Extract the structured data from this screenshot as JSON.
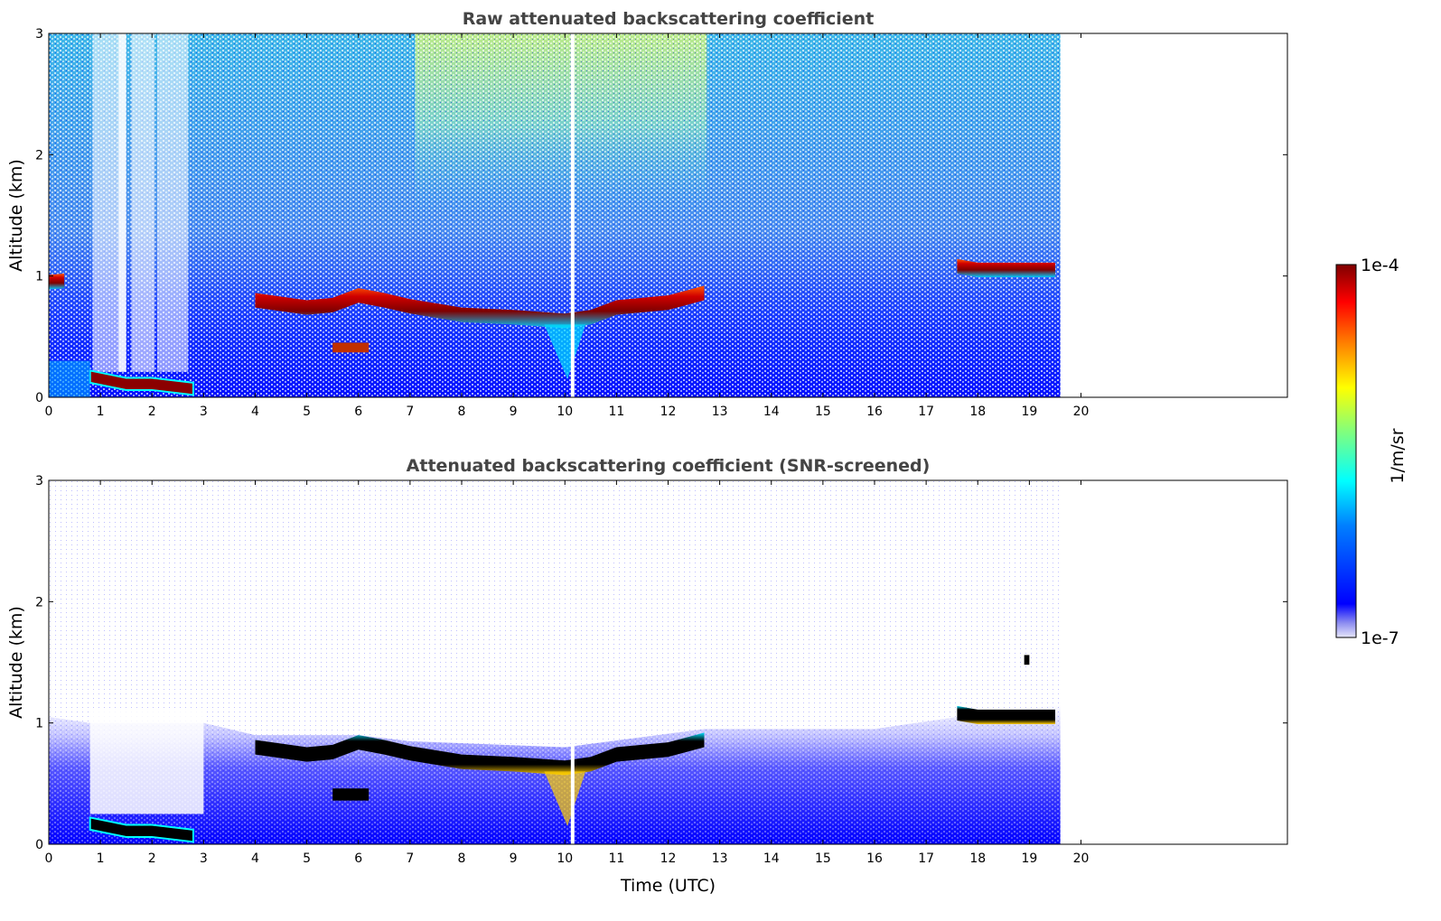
{
  "chart_data": [
    {
      "type": "heatmap",
      "title": "Raw attenuated backscattering coefficient",
      "xlabel": "",
      "ylabel": "Altitude (km)",
      "xlim": [
        0,
        24
      ],
      "ylim": [
        0,
        3
      ],
      "x_ticks": [
        "0",
        "1",
        "2",
        "3",
        "4",
        "5",
        "6",
        "7",
        "8",
        "9",
        "10",
        "11",
        "12",
        "13",
        "14",
        "15",
        "16",
        "17",
        "18",
        "19",
        "20"
      ],
      "y_ticks": [
        "0",
        "1",
        "2",
        "3"
      ],
      "data_time_range": [
        0,
        19.6
      ],
      "gap_times": [
        10.15
      ],
      "cloud_layer": [
        {
          "time": 0.0,
          "alt": 0.95
        },
        {
          "time": 0.3,
          "alt": 0.96
        },
        {
          "time": 4.0,
          "alt": 0.8
        },
        {
          "time": 5.0,
          "alt": 0.74
        },
        {
          "time": 5.5,
          "alt": 0.76
        },
        {
          "time": 6.0,
          "alt": 0.84
        },
        {
          "time": 6.5,
          "alt": 0.8
        },
        {
          "time": 7.0,
          "alt": 0.75
        },
        {
          "time": 8.0,
          "alt": 0.68
        },
        {
          "time": 9.0,
          "alt": 0.66
        },
        {
          "time": 10.0,
          "alt": 0.63
        },
        {
          "time": 10.5,
          "alt": 0.66
        },
        {
          "time": 11.0,
          "alt": 0.74
        },
        {
          "time": 12.0,
          "alt": 0.78
        },
        {
          "time": 12.7,
          "alt": 0.86
        },
        {
          "time": 17.6,
          "alt": 1.08
        },
        {
          "time": 18.0,
          "alt": 1.05
        },
        {
          "time": 19.0,
          "alt": 1.05
        },
        {
          "time": 19.5,
          "alt": 1.05
        }
      ],
      "low_layer": [
        {
          "time": 0.8,
          "alt": 0.18
        },
        {
          "time": 1.5,
          "alt": 0.12
        },
        {
          "time": 2.0,
          "alt": 0.12
        },
        {
          "time": 2.8,
          "alt": 0.08
        }
      ]
    },
    {
      "type": "heatmap",
      "title": "Attenuated backscattering coefficient (SNR-screened)",
      "xlabel": "Time (UTC)",
      "ylabel": "Altitude (km)",
      "xlim": [
        0,
        24
      ],
      "ylim": [
        0,
        3
      ],
      "x_ticks": [
        "0",
        "1",
        "2",
        "3",
        "4",
        "5",
        "6",
        "7",
        "8",
        "9",
        "10",
        "11",
        "12",
        "13",
        "14",
        "15",
        "16",
        "17",
        "18",
        "19",
        "20"
      ],
      "y_ticks": [
        "0",
        "1",
        "2",
        "3"
      ],
      "data_time_range": [
        0,
        19.6
      ],
      "gap_times": [
        10.15
      ],
      "signal_top": [
        {
          "time": 0.0,
          "alt": 1.05
        },
        {
          "time": 0.8,
          "alt": 1.0
        },
        {
          "time": 3.0,
          "alt": 1.0
        },
        {
          "time": 4.0,
          "alt": 0.9
        },
        {
          "time": 6.0,
          "alt": 0.9
        },
        {
          "time": 7.0,
          "alt": 0.85
        },
        {
          "time": 10.0,
          "alt": 0.8
        },
        {
          "time": 12.7,
          "alt": 0.95
        },
        {
          "time": 13.0,
          "alt": 0.95
        },
        {
          "time": 16.0,
          "alt": 0.95
        },
        {
          "time": 17.6,
          "alt": 1.05
        },
        {
          "time": 19.6,
          "alt": 1.15
        }
      ]
    }
  ],
  "colorbar": {
    "label": "1/m/sr",
    "max_label": "1e-4",
    "min_label": "1e-7",
    "colormap": "jet",
    "colors": [
      "#00007f",
      "#0000ff",
      "#007fff",
      "#00ffff",
      "#7fff7f",
      "#ffff00",
      "#ff7f00",
      "#ff0000",
      "#7f0000"
    ],
    "low_color": "#e6e6fa"
  }
}
